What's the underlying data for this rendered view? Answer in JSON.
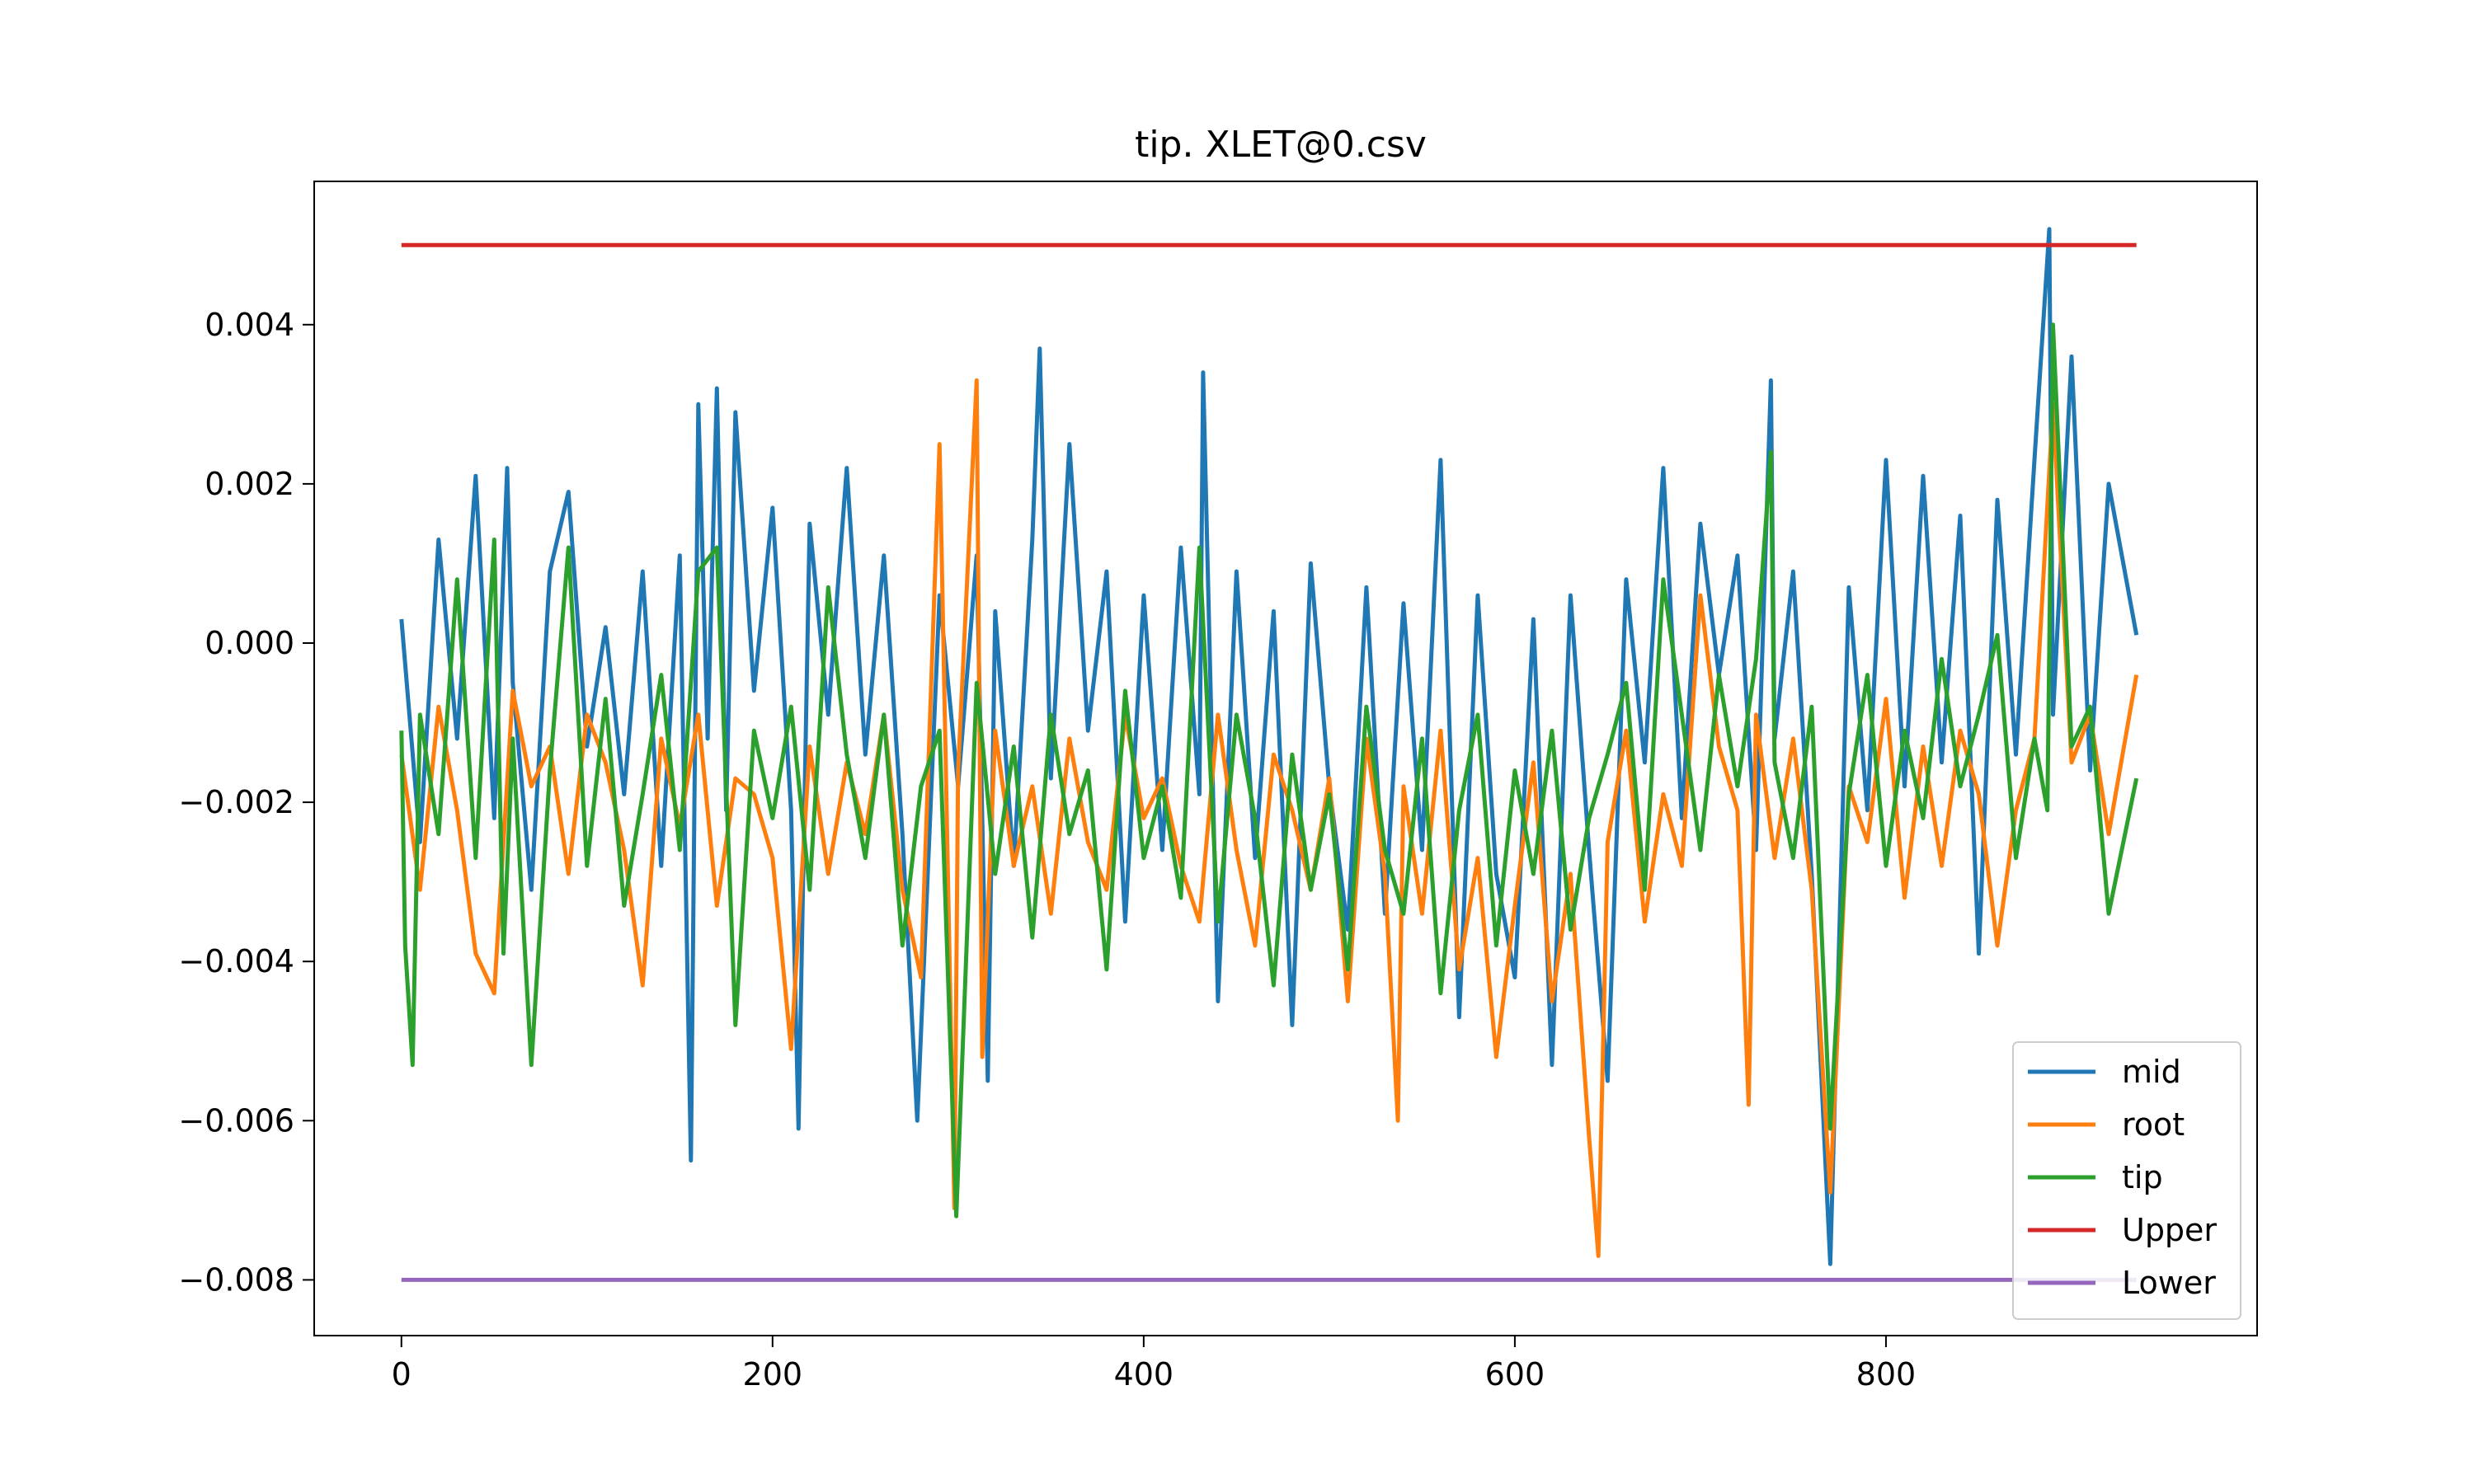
{
  "chart_data": {
    "type": "line",
    "title": "tip. XLET@0.csv",
    "xlabel": "",
    "ylabel": "",
    "xlim": [
      -47,
      1000
    ],
    "ylim": [
      -0.0087,
      0.0058
    ],
    "x_ticks": [
      0,
      200,
      400,
      600,
      800
    ],
    "x_tick_labels": [
      "0",
      "200",
      "400",
      "600",
      "800"
    ],
    "y_ticks": [
      0.004,
      0.002,
      0.0,
      -0.002,
      -0.004,
      -0.006,
      -0.008
    ],
    "y_tick_labels": [
      "0.004",
      "0.002",
      "0.000",
      "−0.002",
      "−0.004",
      "−0.006",
      "−0.008"
    ],
    "grid": false,
    "legend": "lower-right",
    "series": [
      {
        "name": "mid",
        "color": "#1f77b4",
        "x": [
          0,
          10,
          20,
          30,
          40,
          50,
          57,
          60,
          70,
          80,
          90,
          100,
          110,
          120,
          130,
          140,
          150,
          156,
          160,
          165,
          170,
          175,
          180,
          190,
          200,
          210,
          214,
          220,
          230,
          240,
          250,
          260,
          270,
          278,
          290,
          300,
          310,
          316,
          320,
          330,
          340,
          344,
          350,
          360,
          370,
          380,
          390,
          400,
          410,
          420,
          430,
          432,
          440,
          450,
          460,
          470,
          480,
          490,
          500,
          510,
          520,
          530,
          540,
          550,
          560,
          570,
          580,
          590,
          600,
          610,
          620,
          630,
          640,
          650,
          660,
          670,
          680,
          690,
          700,
          710,
          720,
          730,
          738,
          740,
          750,
          760,
          770,
          780,
          790,
          800,
          810,
          820,
          830,
          840,
          850,
          860,
          870,
          880,
          888,
          890,
          900,
          910,
          920,
          935
        ],
        "y": [
          0.0003,
          -0.0025,
          0.0013,
          -0.0012,
          0.0021,
          -0.0022,
          0.0022,
          -0.0005,
          -0.0031,
          0.0009,
          0.0019,
          -0.0013,
          0.0002,
          -0.0019,
          0.0009,
          -0.0028,
          0.0011,
          -0.0065,
          0.003,
          -0.0012,
          0.0032,
          -0.0021,
          0.0029,
          -0.0006,
          0.0017,
          -0.0021,
          -0.0061,
          0.0015,
          -0.0009,
          0.0022,
          -0.0014,
          0.0011,
          -0.0024,
          -0.006,
          0.0006,
          -0.0018,
          0.0011,
          -0.0055,
          0.0004,
          -0.0028,
          0.0013,
          0.0037,
          -0.0017,
          0.0025,
          -0.0011,
          0.0009,
          -0.0035,
          0.0006,
          -0.0026,
          0.0012,
          -0.0019,
          0.0034,
          -0.0045,
          0.0009,
          -0.0027,
          0.0004,
          -0.0048,
          0.001,
          -0.0018,
          -0.0036,
          0.0007,
          -0.0034,
          0.0005,
          -0.0026,
          0.0023,
          -0.0047,
          0.0006,
          -0.0029,
          -0.0042,
          0.0003,
          -0.0053,
          0.0006,
          -0.0026,
          -0.0055,
          0.0008,
          -0.0015,
          0.0022,
          -0.0022,
          0.0015,
          -0.0004,
          0.0011,
          -0.0026,
          0.0033,
          -0.0012,
          0.0009,
          -0.0029,
          -0.0078,
          0.0007,
          -0.0021,
          0.0023,
          -0.0018,
          0.0021,
          -0.0015,
          0.0016,
          -0.0039,
          0.0018,
          -0.0014,
          0.0023,
          0.0052,
          -0.0009,
          0.0036,
          -0.0016,
          0.002,
          0.0001
        ]
      },
      {
        "name": "root",
        "color": "#ff7f0e",
        "x": [
          0,
          10,
          20,
          30,
          40,
          50,
          60,
          70,
          80,
          90,
          100,
          110,
          120,
          130,
          140,
          150,
          160,
          170,
          180,
          190,
          200,
          210,
          220,
          230,
          240,
          250,
          260,
          270,
          280,
          290,
          298,
          300,
          310,
          313,
          320,
          330,
          340,
          350,
          360,
          370,
          380,
          390,
          400,
          410,
          420,
          430,
          440,
          450,
          460,
          470,
          480,
          490,
          500,
          510,
          520,
          530,
          537,
          540,
          550,
          560,
          570,
          580,
          590,
          600,
          610,
          620,
          630,
          640,
          645,
          650,
          660,
          670,
          680,
          690,
          700,
          710,
          720,
          726,
          730,
          740,
          750,
          760,
          770,
          780,
          790,
          800,
          810,
          820,
          830,
          840,
          850,
          860,
          870,
          880,
          890,
          900,
          910,
          920,
          935
        ],
        "y": [
          -0.0014,
          -0.0031,
          -0.0008,
          -0.0021,
          -0.0039,
          -0.0044,
          -0.0006,
          -0.0018,
          -0.0013,
          -0.0029,
          -0.0009,
          -0.0015,
          -0.0026,
          -0.0043,
          -0.0012,
          -0.0023,
          -0.0009,
          -0.0033,
          -0.0017,
          -0.0019,
          -0.0027,
          -0.0051,
          -0.0013,
          -0.0029,
          -0.0015,
          -0.0024,
          -0.0009,
          -0.0031,
          -0.0042,
          0.0025,
          -0.0071,
          -0.0016,
          0.0033,
          -0.0052,
          -0.0011,
          -0.0028,
          -0.0018,
          -0.0034,
          -0.0012,
          -0.0025,
          -0.0031,
          -0.0009,
          -0.0022,
          -0.0017,
          -0.0028,
          -0.0035,
          -0.0009,
          -0.0026,
          -0.0038,
          -0.0014,
          -0.0021,
          -0.0031,
          -0.0017,
          -0.0045,
          -0.0012,
          -0.0029,
          -0.006,
          -0.0018,
          -0.0034,
          -0.0011,
          -0.0041,
          -0.0027,
          -0.0052,
          -0.0033,
          -0.0015,
          -0.0045,
          -0.0029,
          -0.0062,
          -0.0077,
          -0.0025,
          -0.0011,
          -0.0035,
          -0.0019,
          -0.0028,
          0.0006,
          -0.0013,
          -0.0021,
          -0.0058,
          -0.0009,
          -0.0027,
          -0.0012,
          -0.0031,
          -0.0069,
          -0.0018,
          -0.0025,
          -0.0007,
          -0.0032,
          -0.0013,
          -0.0028,
          -0.0011,
          -0.0019,
          -0.0038,
          -0.0021,
          -0.0012,
          0.003,
          -0.0015,
          -0.0009,
          -0.0024,
          -0.0004
        ]
      },
      {
        "name": "tip",
        "color": "#2ca02c",
        "x": [
          0,
          2,
          6,
          10,
          20,
          30,
          40,
          50,
          55,
          60,
          70,
          80,
          90,
          100,
          110,
          120,
          130,
          140,
          150,
          160,
          170,
          180,
          190,
          200,
          210,
          220,
          230,
          240,
          250,
          260,
          270,
          280,
          290,
          299,
          310,
          320,
          330,
          340,
          350,
          360,
          370,
          380,
          390,
          400,
          410,
          420,
          430,
          440,
          450,
          460,
          470,
          480,
          490,
          500,
          510,
          520,
          530,
          540,
          550,
          560,
          570,
          580,
          590,
          600,
          610,
          620,
          630,
          640,
          650,
          660,
          670,
          680,
          690,
          700,
          710,
          720,
          730,
          738,
          740,
          750,
          760,
          770,
          780,
          790,
          800,
          810,
          820,
          830,
          840,
          850,
          860,
          870,
          880,
          887,
          890,
          900,
          910,
          920,
          935
        ],
        "y": [
          -0.0011,
          -0.0038,
          -0.0053,
          -0.0009,
          -0.0024,
          0.0008,
          -0.0027,
          0.0013,
          -0.0039,
          -0.0012,
          -0.0053,
          -0.0016,
          0.0012,
          -0.0028,
          -0.0007,
          -0.0033,
          -0.0019,
          -0.0004,
          -0.0026,
          0.0009,
          0.0012,
          -0.0048,
          -0.0011,
          -0.0022,
          -0.0008,
          -0.0031,
          0.0007,
          -0.0014,
          -0.0027,
          -0.0009,
          -0.0038,
          -0.0018,
          -0.0011,
          -0.0072,
          -0.0005,
          -0.0029,
          -0.0013,
          -0.0037,
          -0.0009,
          -0.0024,
          -0.0016,
          -0.0041,
          -0.0006,
          -0.0027,
          -0.0018,
          -0.0032,
          0.0012,
          -0.0035,
          -0.0009,
          -0.0022,
          -0.0043,
          -0.0014,
          -0.0031,
          -0.0019,
          -0.0041,
          -0.0008,
          -0.0026,
          -0.0034,
          -0.0012,
          -0.0044,
          -0.0021,
          -0.0009,
          -0.0038,
          -0.0016,
          -0.0029,
          -0.0011,
          -0.0036,
          -0.0022,
          -0.0014,
          -0.0005,
          -0.0031,
          0.0008,
          -0.0009,
          -0.0026,
          -0.0004,
          -0.0018,
          -0.0002,
          0.0024,
          -0.0015,
          -0.0027,
          -0.0008,
          -0.0061,
          -0.0019,
          -0.0004,
          -0.0028,
          -0.0011,
          -0.0022,
          -0.0002,
          -0.0018,
          -0.0009,
          0.0001,
          -0.0027,
          -0.0012,
          -0.0021,
          0.004,
          -0.0013,
          -0.0008,
          -0.0034,
          -0.0017
        ]
      },
      {
        "name": "Upper",
        "color": "#d62728",
        "x": [
          0,
          935
        ],
        "y": [
          0.005,
          0.005
        ]
      },
      {
        "name": "Lower",
        "color": "#9467bd",
        "x": [
          0,
          935
        ],
        "y": [
          -0.008,
          -0.008
        ]
      }
    ]
  }
}
